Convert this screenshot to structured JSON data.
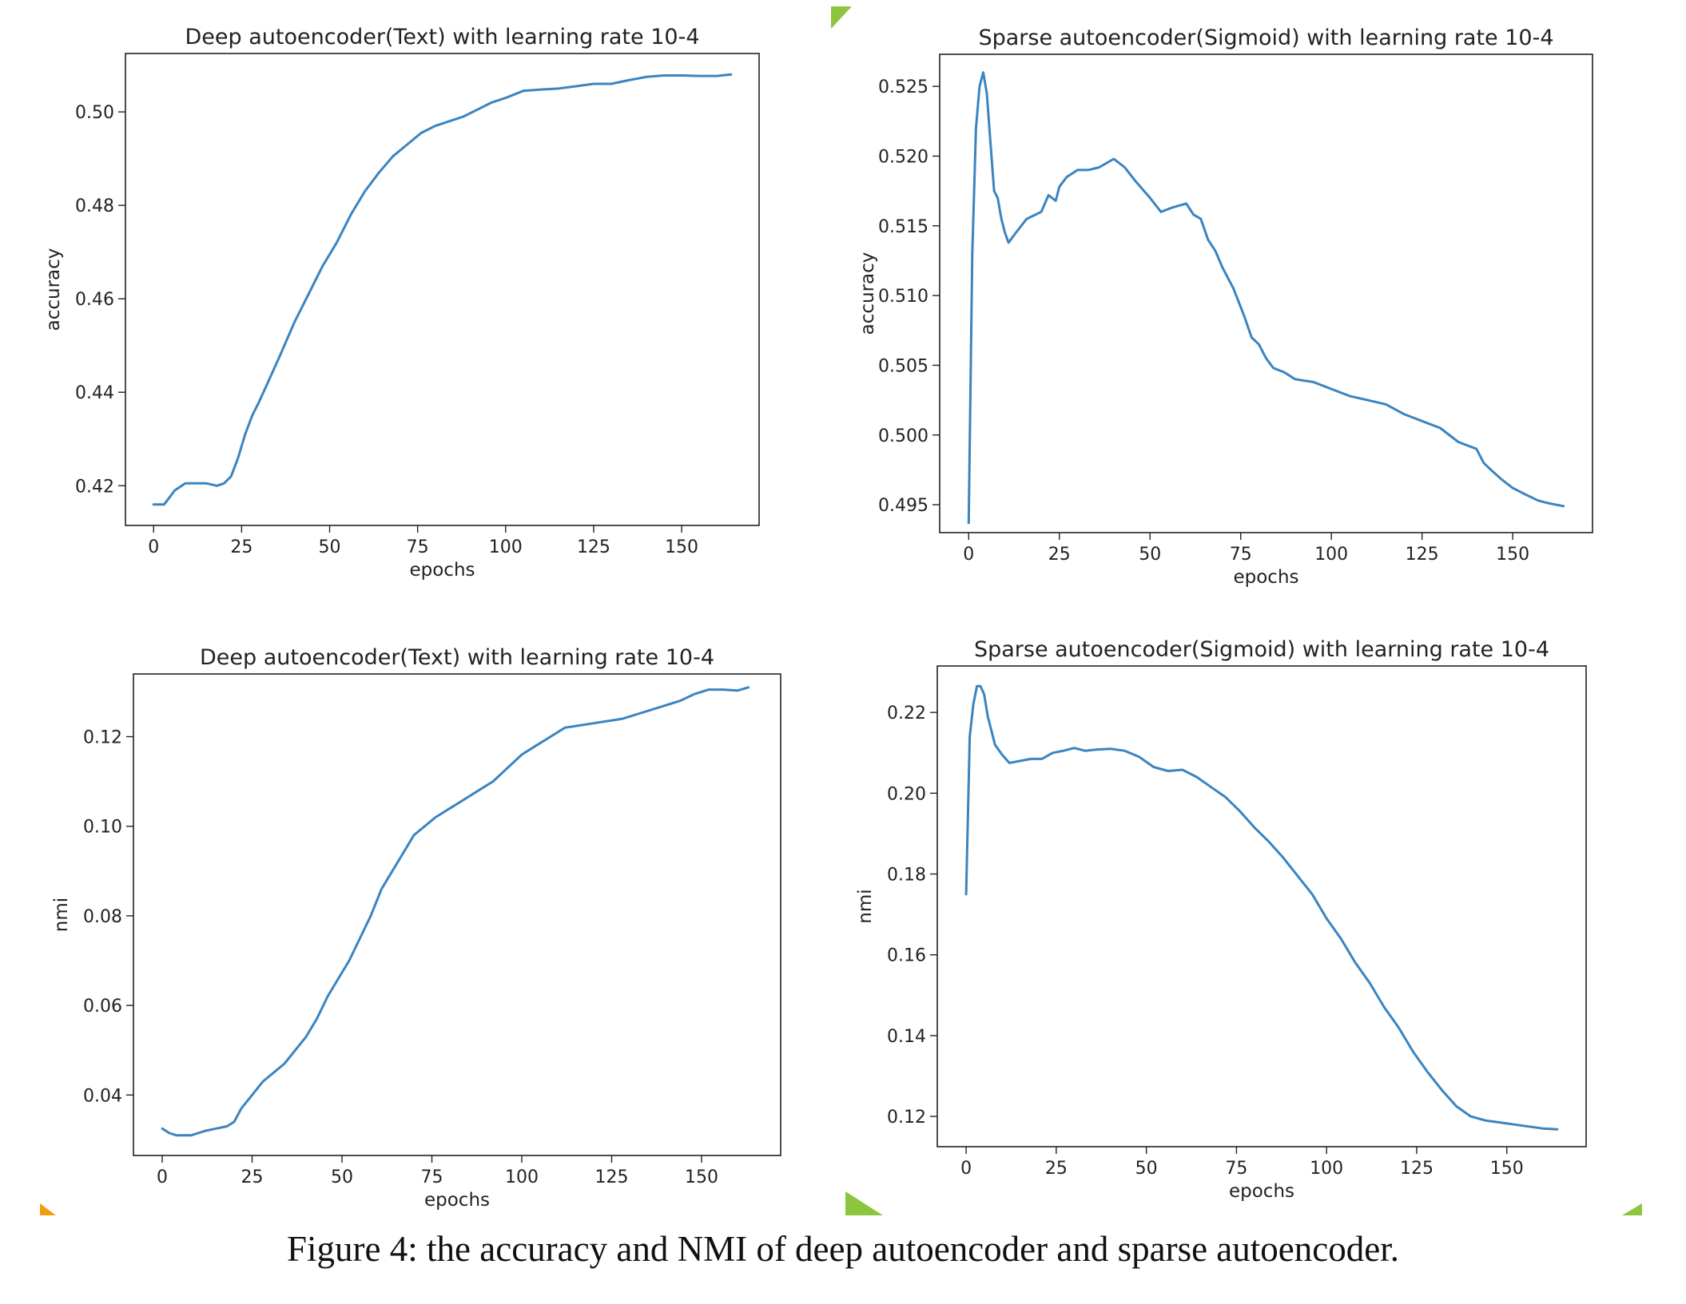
{
  "figure": {
    "caption": "Figure 4: the accuracy and NMI of deep autoencoder and sparse autoencoder."
  },
  "colors": {
    "line": "#3a84c0",
    "axis": "#222222",
    "text": "#222222",
    "accent_orange": "#f39c12",
    "accent_green": "#8cc63f"
  },
  "chart_data": [
    {
      "type": "line",
      "title": "Deep autoencoder(Text) with learning rate 10-4",
      "xlabel": "epochs",
      "ylabel": "accuracy",
      "xlim": [
        -8,
        172
      ],
      "ylim": [
        0.4115,
        0.5125
      ],
      "xticks": [
        0,
        25,
        50,
        75,
        100,
        125,
        150
      ],
      "yticks": [
        0.42,
        0.44,
        0.46,
        0.48,
        0.5
      ],
      "grid": false,
      "series": [
        {
          "x": [
            0,
            3,
            6,
            9,
            12,
            15,
            18,
            20,
            22,
            24,
            26,
            28,
            30,
            33,
            36,
            40,
            44,
            48,
            52,
            56,
            60,
            64,
            68,
            72,
            76,
            80,
            84,
            88,
            92,
            96,
            100,
            105,
            110,
            115,
            120,
            125,
            130,
            135,
            140,
            145,
            150,
            155,
            160,
            164
          ],
          "y": [
            0.416,
            0.416,
            0.419,
            0.4205,
            0.4205,
            0.4205,
            0.42,
            0.4205,
            0.422,
            0.426,
            0.431,
            0.435,
            0.438,
            0.443,
            0.448,
            0.455,
            0.461,
            0.467,
            0.472,
            0.478,
            0.483,
            0.487,
            0.4905,
            0.493,
            0.4955,
            0.497,
            0.498,
            0.499,
            0.5005,
            0.502,
            0.503,
            0.5045,
            0.5048,
            0.505,
            0.5055,
            0.506,
            0.506,
            0.5068,
            0.5075,
            0.5078,
            0.5078,
            0.5077,
            0.5077,
            0.508
          ]
        }
      ]
    },
    {
      "type": "line",
      "title": "Sparse autoencoder(Sigmoid) with learning rate 10-4",
      "xlabel": "epochs",
      "ylabel": "accuracy",
      "xlim": [
        -8,
        172
      ],
      "ylim": [
        0.493,
        0.5273
      ],
      "xticks": [
        0,
        25,
        50,
        75,
        100,
        125,
        150
      ],
      "yticks": [
        0.495,
        0.5,
        0.505,
        0.51,
        0.515,
        0.52,
        0.525
      ],
      "grid": false,
      "series": [
        {
          "x": [
            0,
            1,
            2,
            3,
            4,
            5,
            6,
            7,
            8,
            9,
            10,
            11,
            13,
            16,
            20,
            22,
            24,
            25,
            27,
            30,
            33,
            36,
            40,
            43,
            46,
            50,
            53,
            56,
            60,
            62,
            64,
            66,
            68,
            70,
            73,
            76,
            78,
            80,
            82,
            84,
            87,
            90,
            95,
            100,
            105,
            110,
            115,
            120,
            125,
            130,
            135,
            140,
            142,
            144,
            147,
            150,
            153,
            157,
            160,
            164
          ],
          "y": [
            0.4937,
            0.513,
            0.522,
            0.525,
            0.526,
            0.5245,
            0.521,
            0.5175,
            0.517,
            0.5155,
            0.5145,
            0.5138,
            0.5145,
            0.5155,
            0.516,
            0.5172,
            0.5168,
            0.5178,
            0.5185,
            0.519,
            0.519,
            0.5192,
            0.5198,
            0.5192,
            0.5182,
            0.517,
            0.516,
            0.5163,
            0.5166,
            0.5158,
            0.5155,
            0.514,
            0.5132,
            0.512,
            0.5105,
            0.5085,
            0.507,
            0.5065,
            0.5055,
            0.5048,
            0.5045,
            0.504,
            0.5038,
            0.5033,
            0.5028,
            0.5025,
            0.5022,
            0.5015,
            0.501,
            0.5005,
            0.4995,
            0.499,
            0.498,
            0.4975,
            0.4968,
            0.4962,
            0.4958,
            0.4953,
            0.4951,
            0.4949
          ]
        }
      ]
    },
    {
      "type": "line",
      "title": "Deep autoencoder(Text) with learning rate 10-4",
      "xlabel": "epochs",
      "ylabel": "nmi",
      "xlim": [
        -8,
        172
      ],
      "ylim": [
        0.0265,
        0.134
      ],
      "xticks": [
        0,
        25,
        50,
        75,
        100,
        125,
        150
      ],
      "yticks": [
        0.04,
        0.06,
        0.08,
        0.1,
        0.12
      ],
      "grid": false,
      "series": [
        {
          "x": [
            0,
            2,
            4,
            6,
            8,
            10,
            12,
            15,
            18,
            20,
            22,
            25,
            28,
            31,
            34,
            37,
            40,
            43,
            46,
            49,
            52,
            55,
            58,
            61,
            64,
            67,
            70,
            73,
            76,
            80,
            84,
            88,
            92,
            96,
            100,
            104,
            108,
            112,
            116,
            120,
            124,
            128,
            132,
            136,
            140,
            144,
            148,
            152,
            156,
            160,
            163
          ],
          "y": [
            0.0325,
            0.0315,
            0.031,
            0.031,
            0.031,
            0.0315,
            0.032,
            0.0325,
            0.033,
            0.034,
            0.037,
            0.04,
            0.043,
            0.045,
            0.047,
            0.05,
            0.053,
            0.057,
            0.062,
            0.066,
            0.07,
            0.075,
            0.08,
            0.086,
            0.09,
            0.094,
            0.098,
            0.1,
            0.102,
            0.104,
            0.106,
            0.108,
            0.11,
            0.113,
            0.116,
            0.118,
            0.12,
            0.122,
            0.1225,
            0.123,
            0.1235,
            0.124,
            0.125,
            0.126,
            0.127,
            0.128,
            0.1295,
            0.1305,
            0.1305,
            0.1303,
            0.131
          ]
        }
      ]
    },
    {
      "type": "line",
      "title": "Sparse autoencoder(Sigmoid) with learning rate 10-4",
      "xlabel": "epochs",
      "ylabel": "nmi",
      "xlim": [
        -8,
        172
      ],
      "ylim": [
        0.1125,
        0.2315
      ],
      "xticks": [
        0,
        25,
        50,
        75,
        100,
        125,
        150
      ],
      "yticks": [
        0.12,
        0.14,
        0.16,
        0.18,
        0.2,
        0.22
      ],
      "grid": false,
      "series": [
        {
          "x": [
            0,
            1,
            2,
            3,
            4,
            5,
            6,
            7,
            8,
            10,
            12,
            15,
            18,
            21,
            24,
            27,
            30,
            33,
            36,
            40,
            44,
            48,
            52,
            56,
            60,
            64,
            68,
            72,
            76,
            80,
            84,
            88,
            92,
            96,
            100,
            104,
            108,
            112,
            116,
            120,
            124,
            128,
            132,
            136,
            140,
            144,
            148,
            152,
            156,
            160,
            164
          ],
          "y": [
            0.175,
            0.214,
            0.222,
            0.2265,
            0.2265,
            0.2245,
            0.219,
            0.2155,
            0.212,
            0.2095,
            0.2075,
            0.208,
            0.2085,
            0.2085,
            0.21,
            0.2105,
            0.2112,
            0.2105,
            0.2108,
            0.211,
            0.2105,
            0.209,
            0.2065,
            0.2055,
            0.2058,
            0.204,
            0.2015,
            0.199,
            0.1955,
            0.1915,
            0.188,
            0.184,
            0.1795,
            0.175,
            0.169,
            0.164,
            0.158,
            0.153,
            0.147,
            0.142,
            0.136,
            0.131,
            0.1265,
            0.1225,
            0.12,
            0.119,
            0.1185,
            0.118,
            0.1175,
            0.117,
            0.1168
          ]
        }
      ]
    }
  ]
}
